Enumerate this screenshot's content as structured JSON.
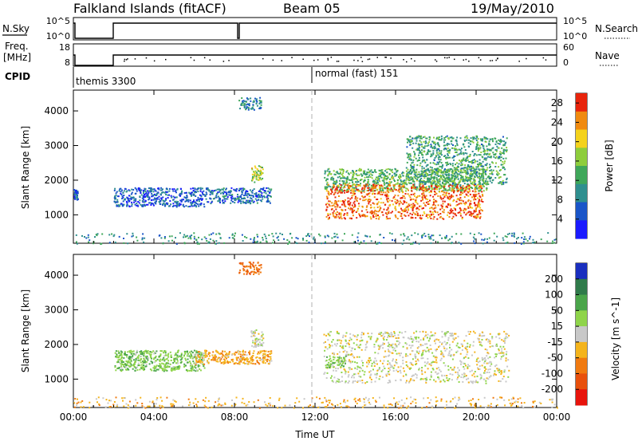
{
  "header": {
    "station": "Falkland Islands (fitACF)",
    "beam": "Beam 05",
    "date": "19/May/2010"
  },
  "strip_nsky": {
    "left_label": "N.Sky",
    "left_ticks": [
      "10^5",
      "10^0"
    ],
    "right_label": "N.Search",
    "right_ticks": [
      "10^5",
      "10^0"
    ]
  },
  "strip_freq": {
    "left_label_1": "Freq.",
    "left_label_2": "[MHz]",
    "left_ticks": [
      "18",
      "8"
    ],
    "right_label": "Nave",
    "right_ticks": [
      "60",
      "0"
    ]
  },
  "cpid": {
    "label": "CPID",
    "program_1": "themis 3300",
    "program_2": "normal (fast) 151"
  },
  "colors": {
    "axis": "#000000",
    "marker_line": "#b0b0b0"
  },
  "chart_data": [
    {
      "type": "heatmap",
      "name": "power",
      "ylabel": "Slant Range [km]",
      "xlabel": "",
      "x_ticks": [
        "00:00",
        "04:00",
        "08:00",
        "12:00",
        "16:00",
        "20:00",
        "00:00"
      ],
      "xlim_hours": [
        0,
        24
      ],
      "y_ticks": [
        1000,
        2000,
        3000,
        4000
      ],
      "ylim_km": [
        180,
        4600
      ],
      "colorbar": {
        "label": "Power [dB]",
        "ticks": [
          4,
          8,
          12,
          16,
          20,
          24,
          28
        ],
        "range": [
          0,
          30
        ],
        "colors": [
          "#1a1aff",
          "#1a55c8",
          "#2f8f8f",
          "#3fa75a",
          "#8ecd3c",
          "#f4d21c",
          "#f08a10",
          "#e8240c"
        ]
      },
      "regions": [
        {
          "x": [
            0.0,
            0.2
          ],
          "y": [
            1450,
            1750
          ],
          "value": 6
        },
        {
          "x": [
            2.0,
            6.5
          ],
          "y": [
            1250,
            1800
          ],
          "value": 6
        },
        {
          "x": [
            6.5,
            9.8
          ],
          "y": [
            1350,
            1800
          ],
          "value": 7
        },
        {
          "x": [
            8.2,
            9.3
          ],
          "y": [
            4050,
            4400
          ],
          "value": 9
        },
        {
          "x": [
            8.8,
            9.4
          ],
          "y": [
            1950,
            2450
          ],
          "value": 18
        },
        {
          "x": [
            12.4,
            20.5
          ],
          "y": [
            1700,
            2350
          ],
          "value": 14
        },
        {
          "x": [
            12.5,
            20.3
          ],
          "y": [
            900,
            1900
          ],
          "value": 26
        },
        {
          "x": [
            16.5,
            21.5
          ],
          "y": [
            1900,
            3300
          ],
          "value": 12
        },
        {
          "x": [
            0.0,
            24.0
          ],
          "y": [
            180,
            500
          ],
          "value": 10
        }
      ]
    },
    {
      "type": "heatmap",
      "name": "velocity",
      "ylabel": "Slant Range [km]",
      "xlabel": "Time UT",
      "x_ticks": [
        "00:00",
        "04:00",
        "08:00",
        "12:00",
        "16:00",
        "20:00",
        "00:00"
      ],
      "xlim_hours": [
        0,
        24
      ],
      "y_ticks": [
        1000,
        2000,
        3000,
        4000
      ],
      "ylim_km": [
        180,
        4600
      ],
      "colorbar": {
        "label": "Velocity [m s^-1]",
        "ticks": [
          "200",
          "100",
          "50",
          "15",
          "-15",
          "-50",
          "-100",
          "-200"
        ],
        "colors": [
          "#1a2fbf",
          "#2f7a4a",
          "#4aa54a",
          "#8fd44a",
          "#c8c8c8",
          "#f4b41c",
          "#f07a10",
          "#e8500c",
          "#e8140c"
        ]
      },
      "regions": [
        {
          "x": [
            2.0,
            6.5
          ],
          "y": [
            1250,
            1850
          ],
          "value": 40
        },
        {
          "x": [
            6.0,
            9.8
          ],
          "y": [
            1450,
            1850
          ],
          "value": -40
        },
        {
          "x": [
            8.2,
            9.3
          ],
          "y": [
            4050,
            4400
          ],
          "value": -90
        },
        {
          "x": [
            8.8,
            9.4
          ],
          "y": [
            1950,
            2450
          ],
          "value": 0
        },
        {
          "x": [
            12.4,
            21.6
          ],
          "y": [
            900,
            2400
          ],
          "value": 0
        },
        {
          "x": [
            12.5,
            13.5
          ],
          "y": [
            1350,
            1700
          ],
          "value": 40
        },
        {
          "x": [
            0.0,
            24.0
          ],
          "y": [
            180,
            500
          ],
          "value": -30
        }
      ]
    }
  ]
}
